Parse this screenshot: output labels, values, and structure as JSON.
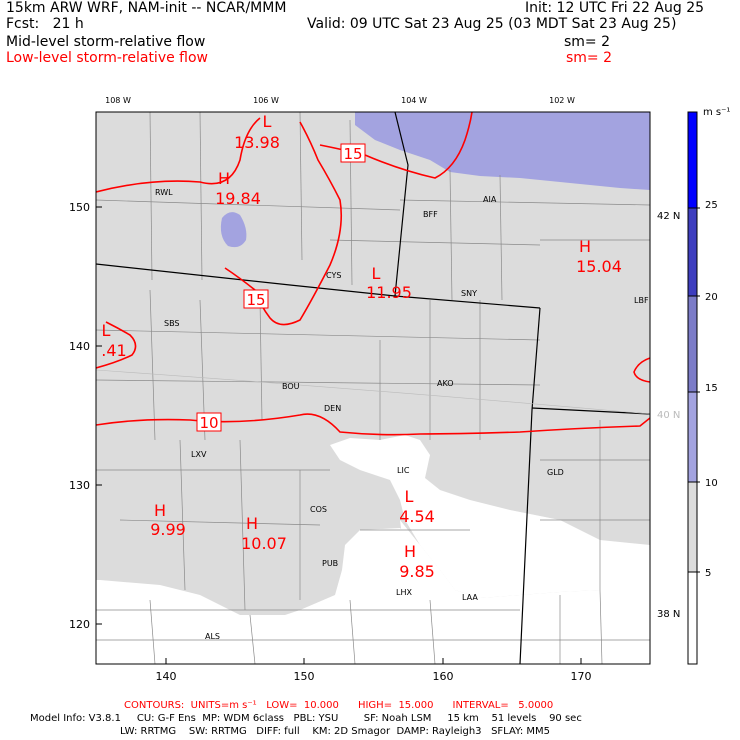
{
  "header": {
    "model": "15km ARW WRF, NAM-init -- NCAR/MMM",
    "fcst": "Fcst:   21 h",
    "init": "Init: 12 UTC Fri 22 Aug 25",
    "valid": "Valid: 09 UTC Sat 23 Aug 25 (03 MDT Sat 23 Aug 25)",
    "mid_title": "Mid-level storm-relative flow",
    "mid_sm": "sm= 2",
    "low_title": "Low-level storm-relative flow",
    "low_sm": "sm= 2"
  },
  "axes": {
    "lon_labels": [
      "108 W",
      "106 W",
      "104 W",
      "102 W"
    ],
    "lat_labels": [
      "42 N",
      "40 N",
      "38 N"
    ],
    "y_ticks": [
      "150",
      "140",
      "130",
      "120"
    ],
    "x_ticks": [
      "140",
      "150",
      "160",
      "170"
    ]
  },
  "colorbar": {
    "unit": "m s⁻¹",
    "levels": [
      "25",
      "20",
      "15",
      "10",
      "5"
    ],
    "colors": [
      "#0000ff",
      "#3e3ebf",
      "#7c7cc8",
      "#a3a3e0",
      "#dcdcdc",
      "#ffffff"
    ]
  },
  "stations": [
    "RWL",
    "BFF",
    "AIA",
    "CYS",
    "SNY",
    "SBS",
    "LBF",
    "AKO",
    "BOU",
    "DEN",
    "LXV",
    "LIC",
    "GLD",
    "COS",
    "PUB",
    "LHX",
    "LAA",
    "ALS"
  ],
  "contour_labels": [
    "15",
    "15",
    "10"
  ],
  "extrema": [
    {
      "type": "L",
      "value": "13.98"
    },
    {
      "type": "H",
      "value": "19.84"
    },
    {
      "type": "L",
      "value": "11.95"
    },
    {
      "type": "H",
      "value": "15.04"
    },
    {
      "type": "L",
      "value": ".41"
    },
    {
      "type": "L",
      "value": "4.54"
    },
    {
      "type": "H",
      "value": "9.99"
    },
    {
      "type": "H",
      "value": "10.07"
    },
    {
      "type": "H",
      "value": "9.85"
    }
  ],
  "footer": {
    "contours": "CONTOURS:  UNITS=m s⁻¹   LOW=  10.000      HIGH=  15.000      INTERVAL=   5.0000",
    "model_info_1": "Model Info: V3.8.1     CU: G-F Ens  MP: WDM 6class   PBL: YSU        SF: Noah LSM     15 km    51 levels    90 sec",
    "model_info_2": "LW: RRTMG    SW: RRTMG   DIFF: full    KM: 2D Smagor  DAMP: Rayleigh3   SFLAY: MM5"
  }
}
